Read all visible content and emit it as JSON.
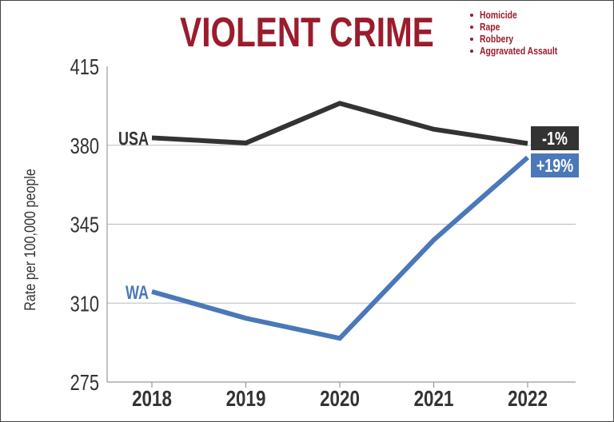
{
  "chart_data": {
    "type": "line",
    "title": "VIOLENT CRIME",
    "legend_note": [
      "Homicide",
      "Rape",
      "Robbery",
      "Aggravated Assault"
    ],
    "xlabel": "",
    "ylabel": "Rate per 100,000 people",
    "categories": [
      "2018",
      "2019",
      "2020",
      "2021",
      "2022"
    ],
    "yticks": [
      "275",
      "310",
      "345",
      "380",
      "415"
    ],
    "ylim": [
      275,
      415
    ],
    "grid": true,
    "series": [
      {
        "name": "USA",
        "color": "#333333",
        "values": [
          383.3,
          381.0,
          398.6,
          387.1,
          380.8
        ],
        "end_label": "-1%"
      },
      {
        "name": "WA",
        "color": "#4a78b8",
        "values": [
          315.1,
          303.3,
          294.4,
          338.0,
          374.6
        ],
        "end_label": "+19%"
      }
    ],
    "title_color": "#9b1c2c"
  }
}
